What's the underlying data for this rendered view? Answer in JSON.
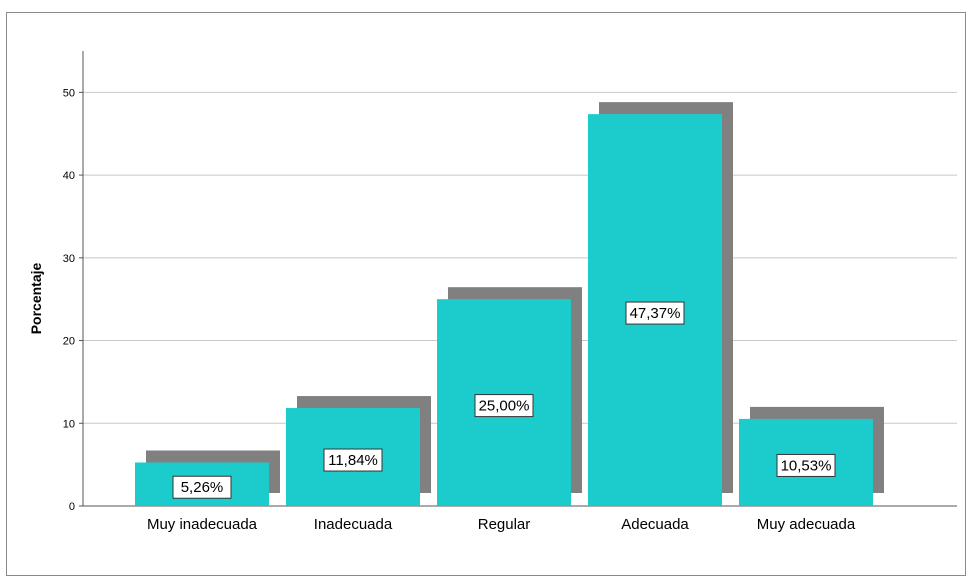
{
  "chart_data": {
    "type": "bar",
    "title": "",
    "xlabel": "",
    "ylabel": "Porcentaje",
    "categories": [
      "Muy inadecuada",
      "Inadecuada",
      "Regular",
      "Adecuada",
      "Muy adecuada"
    ],
    "values": [
      5.26,
      11.84,
      25.0,
      47.37,
      10.53
    ],
    "data_labels": [
      "5,26%",
      "11,84%",
      "25,00%",
      "47,37%",
      "10,53%"
    ],
    "ylim": [
      0,
      55
    ],
    "yticks": [
      0,
      10,
      20,
      30,
      40,
      50
    ],
    "ytick_labels": [
      "0",
      "10",
      "20",
      "30",
      "40",
      "50"
    ],
    "grid": "horizontal",
    "legend": "none",
    "style": "3d-shadow",
    "colors": {
      "bar": "#1ccccc",
      "shadow": "#808080",
      "grid": "#c8c8c8",
      "axis": "#555555"
    }
  }
}
